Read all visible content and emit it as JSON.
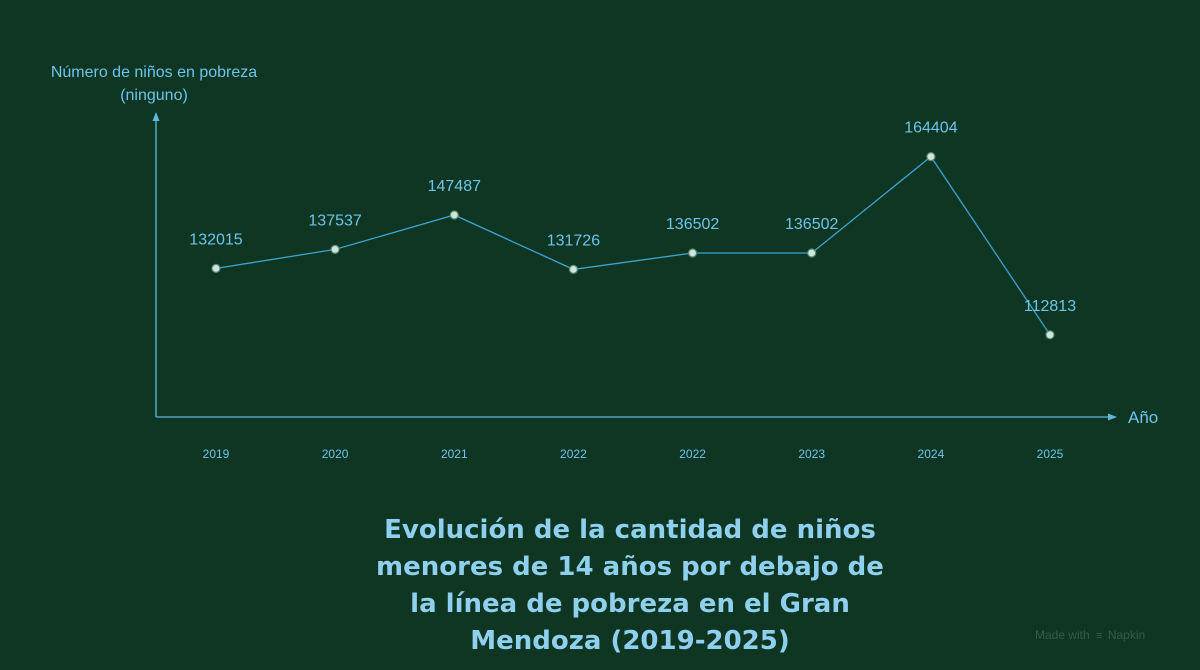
{
  "chart_data": {
    "type": "line",
    "title_lines": [
      "Evolución de la cantidad de niños",
      "menores de 14 años por debajo de",
      "la línea de pobreza en el Gran",
      "Mendoza (2019-2025)"
    ],
    "ylabel_lines": [
      "Número de niños en pobreza",
      "(ninguno)"
    ],
    "xlabel": "Año",
    "categories": [
      "2019",
      "2020",
      "2021",
      "2022",
      "2022",
      "2023",
      "2024",
      "2025"
    ],
    "series": [
      {
        "values": [
          132015,
          137537,
          147487,
          131726,
          136502,
          136502,
          164404,
          112813
        ]
      }
    ],
    "data_labels": [
      "132015",
      "137537",
      "147487",
      "131726",
      "136502",
      "136502",
      "164404",
      "112813"
    ],
    "ylim": [
      89000,
      175000
    ],
    "grid": false,
    "legend": "none",
    "colors": {
      "background": "#0f3623",
      "line": "#3aa4d4",
      "marker_fill": "#cfe6dc",
      "marker_stroke": "#5c8a75",
      "label_text": "#6cc4ec",
      "axis": "#5fb7de",
      "title": "#8fd0ee"
    }
  },
  "footer": {
    "watermark_prefix": "Made with",
    "watermark_brand": "Napkin"
  }
}
